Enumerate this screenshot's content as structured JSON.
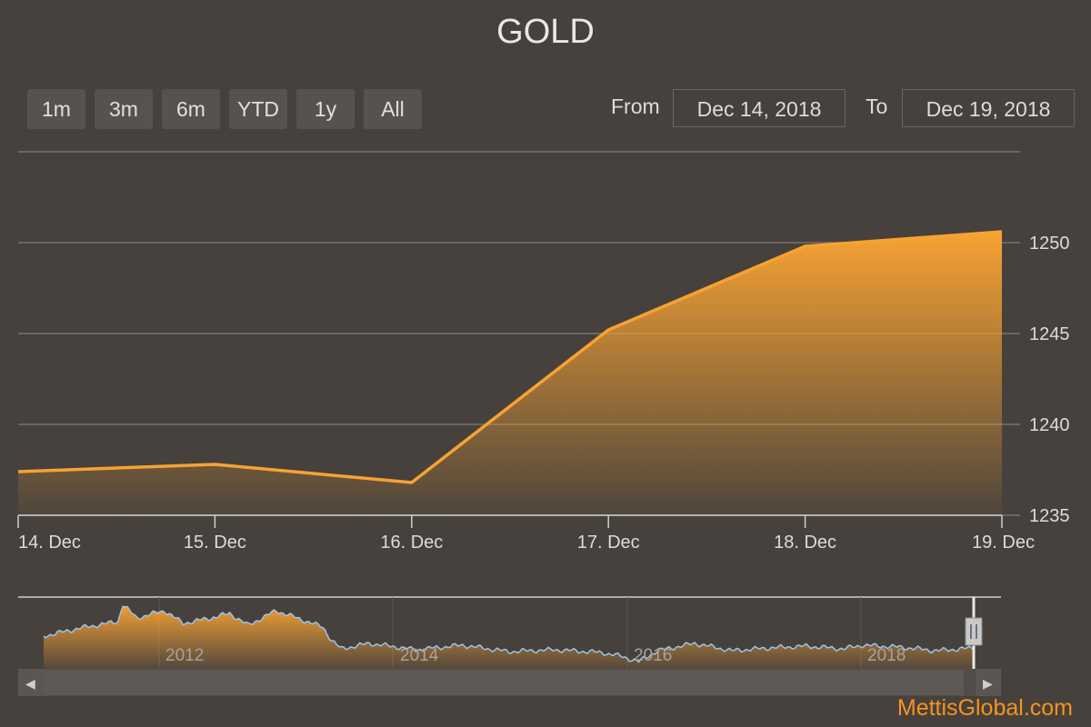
{
  "title": "GOLD",
  "range_buttons": [
    "1m",
    "3m",
    "6m",
    "YTD",
    "1y",
    "All"
  ],
  "from_label": "From",
  "from_value": "Dec 14, 2018",
  "to_label": "To",
  "to_value": "Dec 19, 2018",
  "brand": "MettisGlobal.com",
  "colors": {
    "background": "#46413c",
    "line": "#f7a233",
    "area_top": "#f7a233",
    "navigator_line": "#9fc3e8"
  },
  "chart_data": {
    "type": "area",
    "title": "GOLD",
    "categories": [
      "14. Dec",
      "15. Dec",
      "16. Dec",
      "17. Dec",
      "18. Dec",
      "19. Dec"
    ],
    "x": [
      "2018-12-14",
      "2018-12-15",
      "2018-12-16",
      "2018-12-17",
      "2018-12-18",
      "2018-12-19"
    ],
    "series": [
      {
        "values": [
          1237.4,
          1237.8,
          1236.8,
          1245.2,
          1249.8,
          1250.6
        ]
      }
    ],
    "ylim": [
      1235,
      1255
    ],
    "yticks": [
      1235,
      1240,
      1245,
      1250
    ],
    "grid": true,
    "navigator": {
      "year_labels": [
        "2012",
        "2014",
        "2016",
        "2018"
      ],
      "scroll_left": "◀",
      "scroll_right": "▶"
    }
  }
}
